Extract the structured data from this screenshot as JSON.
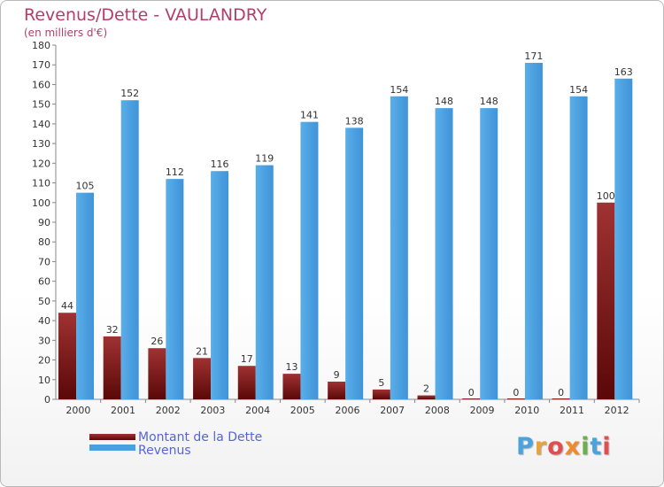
{
  "chart_data": {
    "type": "bar",
    "title": "Revenus/Dette - VAULANDRY",
    "subtitle": "(en milliers d'€)",
    "categories": [
      "2000",
      "2001",
      "2002",
      "2003",
      "2004",
      "2005",
      "2006",
      "2007",
      "2008",
      "2009",
      "2010",
      "2011",
      "2012"
    ],
    "series": [
      {
        "name": "Montant de la Dette",
        "color": "#8b1a1a",
        "values": [
          44,
          32,
          26,
          21,
          17,
          13,
          9,
          5,
          2,
          0,
          0,
          0,
          100
        ]
      },
      {
        "name": "Revenus",
        "color": "#4a9fe0",
        "values": [
          105,
          152,
          112,
          116,
          119,
          141,
          138,
          154,
          148,
          148,
          171,
          154,
          163
        ]
      }
    ],
    "ylim": [
      0,
      180
    ],
    "yticks": [
      0,
      10,
      20,
      30,
      40,
      50,
      60,
      70,
      80,
      90,
      100,
      110,
      120,
      130,
      140,
      150,
      160,
      170,
      180
    ],
    "grid": false,
    "legend_position": "bottom-left"
  },
  "logo": {
    "text": "Proxiti",
    "colors": [
      "#4aa3df",
      "#e8a33d",
      "#e04e4e",
      "#f08a2b",
      "#6ab04c",
      "#4aa3df",
      "#e04e4e"
    ]
  }
}
